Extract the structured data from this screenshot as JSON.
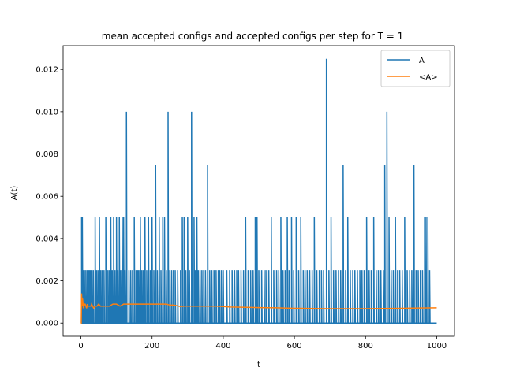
{
  "chart_data": {
    "type": "line",
    "title": "mean accepted configs and accepted configs per step for T = 1",
    "xlabel": "t",
    "ylabel": "A(t)",
    "xlim": [
      -50,
      1050
    ],
    "ylim": [
      -0.000625,
      0.013125
    ],
    "x_ticks": [
      0,
      200,
      400,
      600,
      800,
      1000
    ],
    "x_tick_labels": [
      "0",
      "200",
      "400",
      "600",
      "800",
      "1000"
    ],
    "y_ticks": [
      0,
      0.002,
      0.004,
      0.006,
      0.008,
      0.01,
      0.012
    ],
    "y_tick_labels": [
      "0.000",
      "0.002",
      "0.004",
      "0.006",
      "0.008",
      "0.010",
      "0.012"
    ],
    "grid": false,
    "legend_position": "top-right",
    "series": [
      {
        "name": "A",
        "color": "#1f77b4",
        "baseline": 0.0,
        "spikes": [
          [
            2,
            0.005
          ],
          [
            4,
            0.005
          ],
          [
            7,
            0.0025
          ],
          [
            10,
            0.0025
          ],
          [
            14,
            0.0025
          ],
          [
            18,
            0.0025
          ],
          [
            20,
            0.0025
          ],
          [
            22,
            0.0025
          ],
          [
            25,
            0.0025
          ],
          [
            28,
            0.0025
          ],
          [
            31,
            0.0025
          ],
          [
            35,
            0.0025
          ],
          [
            40,
            0.005
          ],
          [
            44,
            0.0025
          ],
          [
            48,
            0.0025
          ],
          [
            52,
            0.005
          ],
          [
            56,
            0.0025
          ],
          [
            60,
            0.0025
          ],
          [
            65,
            0.0025
          ],
          [
            70,
            0.005
          ],
          [
            76,
            0.0025
          ],
          [
            80,
            0.0025
          ],
          [
            84,
            0.005
          ],
          [
            88,
            0.0025
          ],
          [
            92,
            0.005
          ],
          [
            96,
            0.0025
          ],
          [
            100,
            0.005
          ],
          [
            104,
            0.0025
          ],
          [
            108,
            0.005
          ],
          [
            112,
            0.0025
          ],
          [
            116,
            0.005
          ],
          [
            120,
            0.005
          ],
          [
            124,
            0.0025
          ],
          [
            128,
            0.01
          ],
          [
            135,
            0.0025
          ],
          [
            140,
            0.0025
          ],
          [
            145,
            0.0025
          ],
          [
            150,
            0.005
          ],
          [
            155,
            0.0025
          ],
          [
            160,
            0.0025
          ],
          [
            163,
            0.0025
          ],
          [
            167,
            0.005
          ],
          [
            171,
            0.0025
          ],
          [
            175,
            0.0025
          ],
          [
            180,
            0.005
          ],
          [
            185,
            0.0025
          ],
          [
            190,
            0.005
          ],
          [
            195,
            0.0025
          ],
          [
            200,
            0.005
          ],
          [
            205,
            0.0025
          ],
          [
            210,
            0.0075
          ],
          [
            215,
            0.0025
          ],
          [
            220,
            0.005
          ],
          [
            225,
            0.0025
          ],
          [
            230,
            0.005
          ],
          [
            235,
            0.005
          ],
          [
            240,
            0.0025
          ],
          [
            245,
            0.01
          ],
          [
            250,
            0.0025
          ],
          [
            255,
            0.0025
          ],
          [
            260,
            0.0025
          ],
          [
            265,
            0.0025
          ],
          [
            272,
            0.0025
          ],
          [
            280,
            0.0025
          ],
          [
            285,
            0.005
          ],
          [
            290,
            0.005
          ],
          [
            295,
            0.0025
          ],
          [
            300,
            0.005
          ],
          [
            305,
            0.0025
          ],
          [
            311,
            0.01
          ],
          [
            318,
            0.005
          ],
          [
            322,
            0.0025
          ],
          [
            326,
            0.005
          ],
          [
            330,
            0.0025
          ],
          [
            335,
            0.0025
          ],
          [
            340,
            0.0025
          ],
          [
            345,
            0.0025
          ],
          [
            350,
            0.0025
          ],
          [
            356,
            0.0075
          ],
          [
            362,
            0.0025
          ],
          [
            368,
            0.0025
          ],
          [
            374,
            0.0025
          ],
          [
            380,
            0.0025
          ],
          [
            386,
            0.0025
          ],
          [
            390,
            0.0025
          ],
          [
            395,
            0.0025
          ],
          [
            400,
            0.0025
          ],
          [
            410,
            0.0025
          ],
          [
            418,
            0.0025
          ],
          [
            425,
            0.0025
          ],
          [
            432,
            0.0025
          ],
          [
            438,
            0.0025
          ],
          [
            443,
            0.0025
          ],
          [
            450,
            0.0025
          ],
          [
            457,
            0.0025
          ],
          [
            463,
            0.005
          ],
          [
            470,
            0.0025
          ],
          [
            477,
            0.0025
          ],
          [
            484,
            0.0025
          ],
          [
            490,
            0.005
          ],
          [
            495,
            0.005
          ],
          [
            500,
            0.0025
          ],
          [
            508,
            0.0025
          ],
          [
            515,
            0.0025
          ],
          [
            520,
            0.0025
          ],
          [
            528,
            0.0025
          ],
          [
            535,
            0.005
          ],
          [
            542,
            0.0025
          ],
          [
            550,
            0.0025
          ],
          [
            556,
            0.0025
          ],
          [
            562,
            0.005
          ],
          [
            568,
            0.0025
          ],
          [
            574,
            0.0025
          ],
          [
            580,
            0.005
          ],
          [
            585,
            0.0025
          ],
          [
            592,
            0.005
          ],
          [
            598,
            0.0025
          ],
          [
            605,
            0.005
          ],
          [
            612,
            0.0025
          ],
          [
            618,
            0.005
          ],
          [
            625,
            0.0025
          ],
          [
            630,
            0.0025
          ],
          [
            636,
            0.0025
          ],
          [
            643,
            0.0025
          ],
          [
            650,
            0.0025
          ],
          [
            656,
            0.005
          ],
          [
            663,
            0.0025
          ],
          [
            670,
            0.0025
          ],
          [
            676,
            0.0025
          ],
          [
            682,
            0.0025
          ],
          [
            690,
            0.0125
          ],
          [
            697,
            0.0025
          ],
          [
            703,
            0.005
          ],
          [
            710,
            0.0025
          ],
          [
            717,
            0.0025
          ],
          [
            724,
            0.0025
          ],
          [
            730,
            0.0025
          ],
          [
            737,
            0.0075
          ],
          [
            744,
            0.0025
          ],
          [
            750,
            0.005
          ],
          [
            757,
            0.0025
          ],
          [
            764,
            0.0025
          ],
          [
            770,
            0.0025
          ],
          [
            777,
            0.0025
          ],
          [
            784,
            0.0025
          ],
          [
            790,
            0.0025
          ],
          [
            796,
            0.0025
          ],
          [
            803,
            0.005
          ],
          [
            810,
            0.0025
          ],
          [
            816,
            0.0025
          ],
          [
            823,
            0.005
          ],
          [
            830,
            0.0025
          ],
          [
            836,
            0.0025
          ],
          [
            843,
            0.0025
          ],
          [
            850,
            0.0025
          ],
          [
            854,
            0.0075
          ],
          [
            860,
            0.01
          ],
          [
            866,
            0.005
          ],
          [
            872,
            0.0025
          ],
          [
            878,
            0.0025
          ],
          [
            884,
            0.005
          ],
          [
            890,
            0.0025
          ],
          [
            896,
            0.0025
          ],
          [
            903,
            0.0025
          ],
          [
            910,
            0.005
          ],
          [
            917,
            0.0025
          ],
          [
            924,
            0.0025
          ],
          [
            930,
            0.0025
          ],
          [
            936,
            0.0075
          ],
          [
            942,
            0.0025
          ],
          [
            948,
            0.0025
          ],
          [
            954,
            0.0025
          ],
          [
            960,
            0.0025
          ],
          [
            966,
            0.005
          ],
          [
            970,
            0.005
          ],
          [
            975,
            0.005
          ],
          [
            980,
            0.0025
          ]
        ],
        "x_end": 1000
      },
      {
        "name": "<A>",
        "color": "#ff7f0e",
        "x": [
          0,
          1,
          2,
          3,
          4,
          5,
          6,
          7,
          8,
          10,
          12,
          14,
          16,
          18,
          20,
          22,
          25,
          28,
          30,
          33,
          36,
          40,
          45,
          50,
          55,
          60,
          65,
          70,
          75,
          80,
          90,
          100,
          110,
          120,
          130,
          140,
          150,
          160,
          170,
          180,
          190,
          200,
          210,
          220,
          230,
          240,
          250,
          260,
          270,
          280,
          290,
          300,
          320,
          340,
          360,
          380,
          400,
          420,
          450,
          480,
          500,
          550,
          600,
          650,
          700,
          750,
          800,
          850,
          900,
          950,
          1000
        ],
        "values": [
          0,
          0,
          0.0014,
          0.0008,
          0.0012,
          0.0011,
          0.0009,
          0.0007,
          0.0008,
          0.0009,
          0.0009,
          0.0008,
          0.0007,
          0.0009,
          0.0008,
          0.0008,
          0.0008,
          0.0008,
          0.0009,
          0.0008,
          0.0007,
          0.0008,
          0.0008,
          0.0009,
          0.0008,
          0.0008,
          0.0008,
          0.0008,
          0.0008,
          0.0008,
          0.0009,
          0.0009,
          0.0008,
          0.0009,
          0.0009,
          0.0009,
          0.0009,
          0.0009,
          0.0009,
          0.0009,
          0.0009,
          0.0009,
          0.0009,
          0.0009,
          0.0009,
          0.0009,
          0.00085,
          0.00085,
          0.00082,
          0.00078,
          0.0008,
          0.0008,
          0.0008,
          0.0008,
          0.0008,
          0.0008,
          0.00078,
          0.00076,
          0.00075,
          0.00074,
          0.00073,
          0.00072,
          0.0007,
          0.00069,
          0.00068,
          0.00068,
          0.00068,
          0.00069,
          0.0007,
          0.00071,
          0.00072
        ]
      }
    ]
  }
}
